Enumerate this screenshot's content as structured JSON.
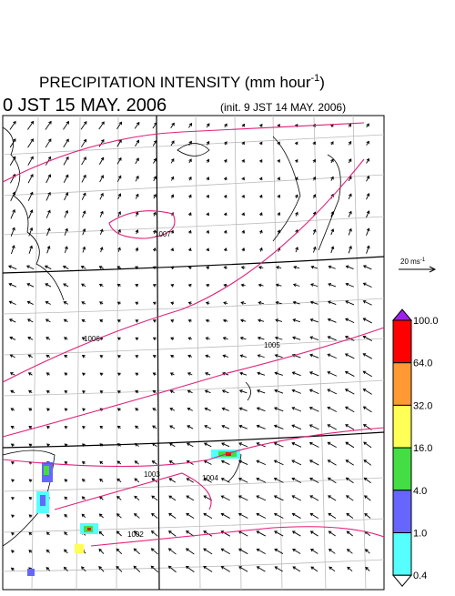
{
  "header": {
    "title": {
      "text": "PRECIPITATION INTENSITY (mm hour",
      "sup": "-1",
      "close": ")"
    },
    "valid_time": "0 JST 15 MAY. 2006",
    "init_time": "(init. 9 JST 14 MAY. 2006)"
  },
  "wind_scale": {
    "text": "20 ms",
    "sup": "-1"
  },
  "legend": {
    "levels": [
      "100.0",
      "64.0",
      "32.0",
      "16.0",
      "4.0",
      "1.0",
      "0.4"
    ],
    "colors": [
      "#a020f0",
      "#ff0000",
      "#ff9933",
      "#ffff55",
      "#44dd44",
      "#6666ff",
      "#55ffff",
      "#ffffff"
    ]
  },
  "contours": [
    "1007",
    "1006",
    "1005",
    "1004",
    "1003",
    "1002"
  ]
}
